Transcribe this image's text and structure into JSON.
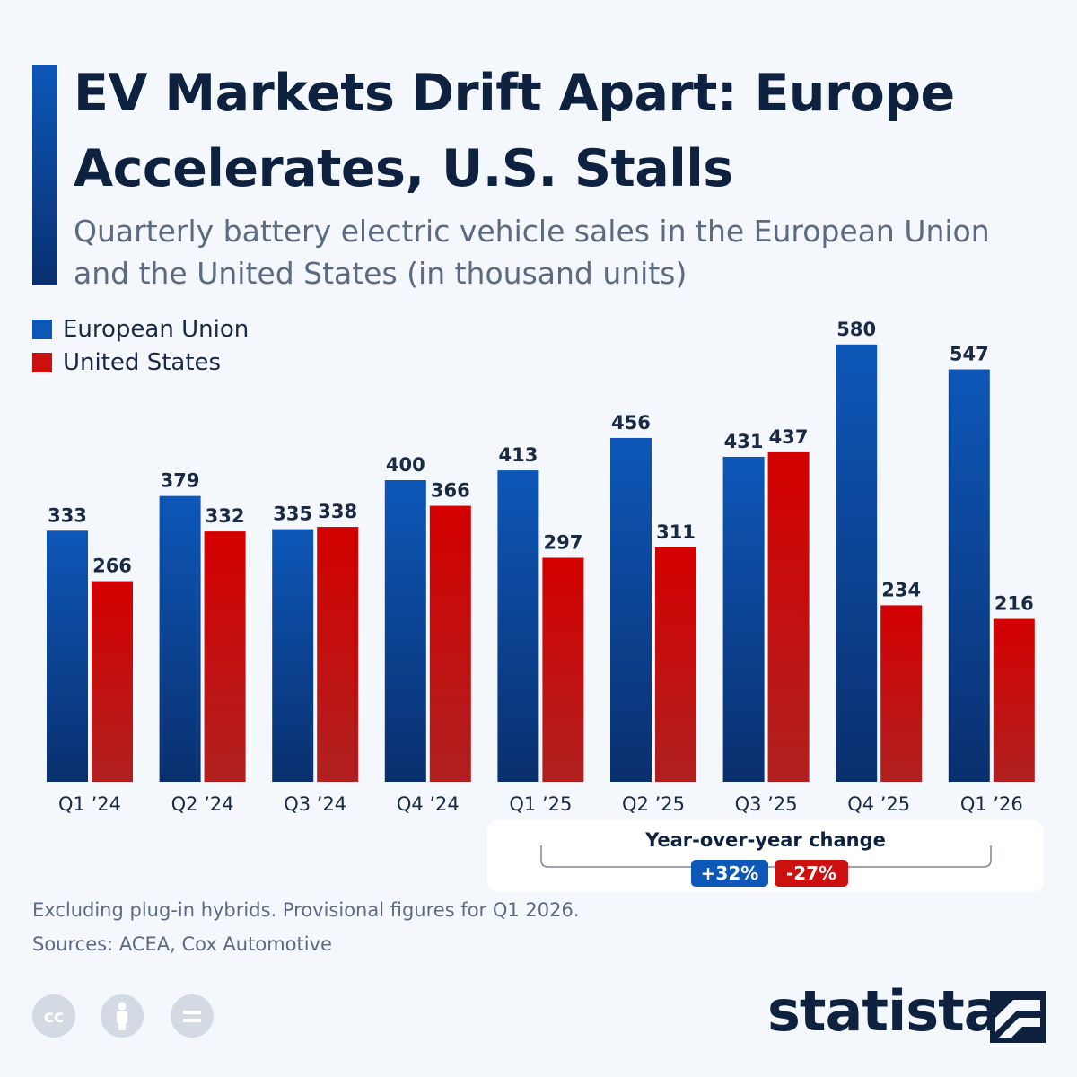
{
  "title": "EV Markets Drift Apart: Europe Accelerates, U.S. Stalls",
  "subtitle": "Quarterly battery electric vehicle sales in the European Union and the United States (in thousand units)",
  "legend": [
    {
      "label": "European Union",
      "color": "#0d57b8"
    },
    {
      "label": "United States",
      "color": "#cc0f0f"
    }
  ],
  "chart_data": {
    "type": "bar",
    "categories": [
      "Q1 ’24",
      "Q2 ’24",
      "Q3 ’24",
      "Q4 ’24",
      "Q1 ’25",
      "Q2 ’25",
      "Q3 ’25",
      "Q4 ’25",
      "Q1 ’26"
    ],
    "series": [
      {
        "name": "European Union",
        "values": [
          333,
          379,
          335,
          400,
          413,
          456,
          431,
          580,
          547
        ],
        "color_top": "#0d57b8",
        "color_bottom": "#0a2f6e"
      },
      {
        "name": "United States",
        "values": [
          266,
          332,
          338,
          366,
          297,
          311,
          437,
          234,
          216
        ],
        "color_top": "#d40000",
        "color_bottom": "#b02020"
      }
    ],
    "ylim": [
      0,
      600
    ],
    "grid": false,
    "data_labels": true,
    "legend_position": "top-left"
  },
  "yoy": {
    "title": "Year-over-year change",
    "eu": "+32%",
    "us": "-27%"
  },
  "footnote": "Excluding plug-in hybrids. Provisional figures for Q1 2026.",
  "sources": "Sources: ACEA, Cox Automotive",
  "license_icons": [
    "creative-commons-icon",
    "attribution-icon",
    "no-derivatives-icon"
  ],
  "brand": "statista"
}
